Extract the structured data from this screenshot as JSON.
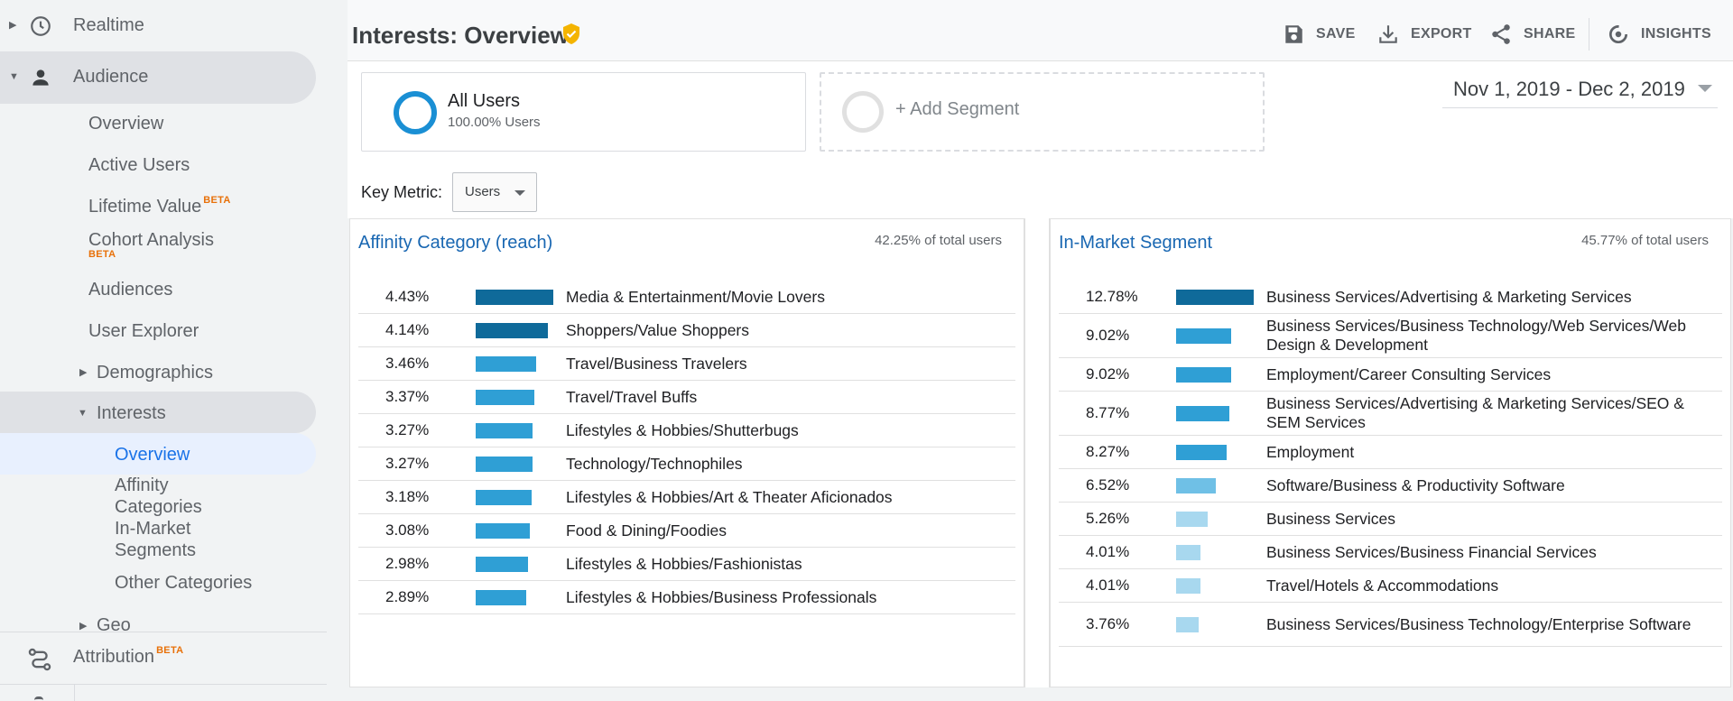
{
  "sidebar": {
    "realtime": "Realtime",
    "audience": "Audience",
    "audience_items": {
      "overview": "Overview",
      "active_users": "Active Users",
      "lifetime_value": "Lifetime Value",
      "cohort_analysis": "Cohort Analysis",
      "audiences": "Audiences",
      "user_explorer": "User Explorer",
      "demographics": "Demographics",
      "interests": "Interests",
      "interests_items": {
        "overview": "Overview",
        "affinity_categories": "Affinity Categories",
        "in_market_segments": "In-Market Segments",
        "other_categories": "Other Categories"
      },
      "geo": "Geo"
    },
    "attribution": "Attribution",
    "beta": "BETA"
  },
  "header": {
    "title": "Interests: Overview",
    "buttons": {
      "save": "SAVE",
      "export": "EXPORT",
      "share": "SHARE",
      "insights": "INSIGHTS"
    }
  },
  "segments": {
    "all_users": {
      "name": "All Users",
      "sub": "100.00% Users"
    },
    "add_segment": "+ Add Segment"
  },
  "date_range": "Nov 1, 2019 - Dec 2, 2019",
  "key_metric": {
    "label": "Key Metric:",
    "value": "Users"
  },
  "affinity": {
    "title": "Affinity Category (reach)",
    "total": "42.25% of total users",
    "rows": [
      {
        "pct": "4.43%",
        "value": 4.43,
        "label": "Media & Entertainment/Movie Lovers"
      },
      {
        "pct": "4.14%",
        "value": 4.14,
        "label": "Shoppers/Value Shoppers"
      },
      {
        "pct": "3.46%",
        "value": 3.46,
        "label": "Travel/Business Travelers"
      },
      {
        "pct": "3.37%",
        "value": 3.37,
        "label": "Travel/Travel Buffs"
      },
      {
        "pct": "3.27%",
        "value": 3.27,
        "label": "Lifestyles & Hobbies/Shutterbugs"
      },
      {
        "pct": "3.27%",
        "value": 3.27,
        "label": "Technology/Technophiles"
      },
      {
        "pct": "3.18%",
        "value": 3.18,
        "label": "Lifestyles & Hobbies/Art & Theater Aficionados"
      },
      {
        "pct": "3.08%",
        "value": 3.08,
        "label": "Food & Dining/Foodies"
      },
      {
        "pct": "2.98%",
        "value": 2.98,
        "label": "Lifestyles & Hobbies/Fashionistas"
      },
      {
        "pct": "2.89%",
        "value": 2.89,
        "label": "Lifestyles & Hobbies/Business Professionals"
      }
    ]
  },
  "inmarket": {
    "title": "In-Market Segment",
    "total": "45.77% of total users",
    "rows": [
      {
        "pct": "12.78%",
        "value": 12.78,
        "label": "Business Services/Advertising & Marketing Services"
      },
      {
        "pct": "9.02%",
        "value": 9.02,
        "label": "Business Services/Business Technology/Web Services/Web Design & Development"
      },
      {
        "pct": "9.02%",
        "value": 9.02,
        "label": "Employment/Career Consulting Services"
      },
      {
        "pct": "8.77%",
        "value": 8.77,
        "label": "Business Services/Advertising & Marketing Services/SEO & SEM Services"
      },
      {
        "pct": "8.27%",
        "value": 8.27,
        "label": "Employment"
      },
      {
        "pct": "6.52%",
        "value": 6.52,
        "label": "Software/Business & Productivity Software"
      },
      {
        "pct": "5.26%",
        "value": 5.26,
        "label": "Business Services"
      },
      {
        "pct": "4.01%",
        "value": 4.01,
        "label": "Business Services/Business Financial Services"
      },
      {
        "pct": "4.01%",
        "value": 4.01,
        "label": "Travel/Hotels & Accommodations"
      },
      {
        "pct": "3.76%",
        "value": 3.76,
        "label": "Business Services/Business Technology/Enterprise Software"
      }
    ]
  },
  "colors": {
    "bar_dark": "#0f6a9a",
    "bar_mid": "#2f9fd5",
    "bar_light": "#6fc0e6",
    "bar_pale": "#a8d8ef",
    "accent": "#1a73e8",
    "verified": "#f4b400"
  }
}
